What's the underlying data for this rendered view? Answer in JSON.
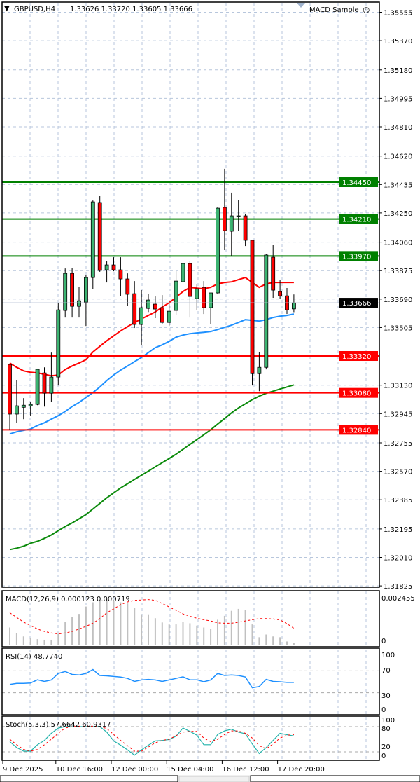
{
  "header": {
    "menu_glyph": "▼",
    "symbol": "GBPUSD,H4",
    "ohlc": "1.33626 1.33720 1.33605 1.33666",
    "expert": "MACD Sample",
    "expert_icon": "sad-face-icon",
    "expert_glyph": "☹"
  },
  "colors": {
    "bull": "#3cb371",
    "bear": "#ff0000",
    "ma_fast": "#ff0000",
    "ma_mid": "#1e90ff",
    "ma_slow": "#0a8a0a",
    "resistance": "#008000",
    "support": "#ff0000",
    "grid": "#b7c6dc",
    "macd_hist": "#c0c0c0",
    "macd_signal": "#ff0000",
    "rsi": "#1e90ff",
    "stoch_main": "#20b2aa",
    "stoch_signal": "#ff0000"
  },
  "chart_data": [
    {
      "type": "candlestick",
      "title": "GBPUSD,H4",
      "ylim": [
        1.31825,
        1.35555
      ],
      "grid": true,
      "y_ticks": [
        "1.35555",
        "1.35370",
        "1.35180",
        "1.34995",
        "1.34810",
        "1.34620",
        "1.34435",
        "1.34250",
        "1.34060",
        "1.33875",
        "1.33690",
        "1.33505",
        "1.33130",
        "1.32945",
        "1.32755",
        "1.32570",
        "1.32385",
        "1.32195",
        "1.32010",
        "1.31825"
      ],
      "x_ticks": [
        "9 Dec 2025",
        "10 Dec 16:00",
        "12 Dec 00:00",
        "15 Dec 04:00",
        "16 Dec 12:00",
        "17 Dec 20:00"
      ],
      "x_tick_candle_index": [
        -1,
        7,
        15,
        23,
        31,
        39
      ],
      "current_price": "1.33666",
      "levels": [
        {
          "price": "1.34450",
          "kind": "resistance"
        },
        {
          "price": "1.34210",
          "kind": "resistance"
        },
        {
          "price": "1.33970",
          "kind": "resistance"
        },
        {
          "price": "1.33320",
          "kind": "support"
        },
        {
          "price": "1.33080",
          "kind": "support"
        },
        {
          "price": "1.32840",
          "kind": "support"
        }
      ],
      "ohlc": [
        [
          1.33265,
          1.33265,
          1.32842,
          1.32942
        ],
        [
          1.32942,
          1.33165,
          1.32886,
          1.32996
        ],
        [
          1.32986,
          1.33046,
          1.32909,
          1.33
        ],
        [
          1.32996,
          1.33023,
          1.32932,
          1.33005
        ],
        [
          1.33005,
          1.33237,
          1.33,
          1.33233
        ],
        [
          1.3321,
          1.33246,
          1.32991,
          1.33078
        ],
        [
          1.33078,
          1.33342,
          1.33023,
          1.33183
        ],
        [
          1.33183,
          1.33666,
          1.33128,
          1.3362
        ],
        [
          1.33616,
          1.33889,
          1.3357,
          1.33857
        ],
        [
          1.33857,
          1.33894,
          1.3357,
          1.33643
        ],
        [
          1.33643,
          1.33771,
          1.3357,
          1.33679
        ],
        [
          1.3367,
          1.33848,
          1.33515,
          1.3383
        ],
        [
          1.3383,
          1.34331,
          1.33757,
          1.34322
        ],
        [
          1.34318,
          1.34359,
          1.33867,
          1.33876
        ],
        [
          1.3388,
          1.33935,
          1.33798,
          1.33912
        ],
        [
          1.33912,
          1.33962,
          1.33871,
          1.3388
        ],
        [
          1.3388,
          1.33962,
          1.33711,
          1.33821
        ],
        [
          1.33821,
          1.33857,
          1.33648,
          1.33721
        ],
        [
          1.33725,
          1.33807,
          1.33502,
          1.33525
        ],
        [
          1.33525,
          1.33748,
          1.33392,
          1.33634
        ],
        [
          1.33629,
          1.33725,
          1.33606,
          1.33684
        ],
        [
          1.33657,
          1.33707,
          1.33566,
          1.33625
        ],
        [
          1.33634,
          1.33716,
          1.33525,
          1.33538
        ],
        [
          1.33538,
          1.33675,
          1.33515,
          1.33611
        ],
        [
          1.33616,
          1.33871,
          1.33584,
          1.33807
        ],
        [
          1.33803,
          1.3399,
          1.3378,
          1.33921
        ],
        [
          1.33921,
          1.33935,
          1.3357,
          1.33707
        ],
        [
          1.33693,
          1.33784,
          1.33616,
          1.33757
        ],
        [
          1.33766,
          1.33807,
          1.33593,
          1.33634
        ],
        [
          1.33634,
          1.3373,
          1.33525,
          1.3373
        ],
        [
          1.3373,
          1.3429,
          1.33725,
          1.34281
        ],
        [
          1.34286,
          1.34537,
          1.34008,
          1.34135
        ],
        [
          1.34131,
          1.34382,
          1.33971,
          1.34231
        ],
        [
          1.34227,
          1.34336,
          1.34131,
          1.34231
        ],
        [
          1.34231,
          1.34245,
          1.34035,
          1.34072
        ],
        [
          1.34072,
          1.34072,
          1.33128,
          1.33205
        ],
        [
          1.33205,
          1.33347,
          1.33091,
          1.33246
        ],
        [
          1.33246,
          1.33981,
          1.33233,
          1.33976
        ],
        [
          1.33962,
          1.3404,
          1.33698,
          1.33748
        ],
        [
          1.33739,
          1.33816,
          1.33689,
          1.33711
        ],
        [
          1.33711,
          1.33762,
          1.33593,
          1.3362
        ],
        [
          1.33626,
          1.3372,
          1.33605,
          1.33666
        ]
      ],
      "ma_fast": [
        1.33274,
        1.33246,
        1.33223,
        1.33214,
        1.3321,
        1.33201,
        1.33191,
        1.33196,
        1.33232,
        1.33255,
        1.33274,
        1.33296,
        1.33346,
        1.33383,
        1.33419,
        1.33451,
        1.33483,
        1.33511,
        1.33538,
        1.33561,
        1.33584,
        1.33606,
        1.33638,
        1.33666,
        1.33702,
        1.33739,
        1.33766,
        1.33761,
        1.33757,
        1.33766,
        1.33789,
        1.33798,
        1.33802,
        1.33816,
        1.3383,
        1.33798,
        1.33766,
        1.33789,
        1.33798,
        1.33798,
        1.33798,
        1.33798
      ],
      "ma_mid": [
        1.32813,
        1.32827,
        1.32836,
        1.32845,
        1.32868,
        1.32886,
        1.32909,
        1.32932,
        1.32959,
        1.32991,
        1.33018,
        1.3305,
        1.33082,
        1.33118,
        1.3316,
        1.33196,
        1.33228,
        1.33255,
        1.33283,
        1.3331,
        1.33342,
        1.33374,
        1.33392,
        1.33415,
        1.33442,
        1.33456,
        1.33465,
        1.3347,
        1.33474,
        1.33479,
        1.33492,
        1.33506,
        1.3352,
        1.33538,
        1.33556,
        1.33552,
        1.33547,
        1.33556,
        1.3357,
        1.33579,
        1.33584,
        1.33593
      ],
      "ma_slow": [
        1.32061,
        1.3207,
        1.32083,
        1.32102,
        1.32115,
        1.32134,
        1.32156,
        1.32184,
        1.32211,
        1.32234,
        1.32261,
        1.32289,
        1.32325,
        1.32362,
        1.32398,
        1.3243,
        1.32462,
        1.32489,
        1.32517,
        1.32544,
        1.32571,
        1.32599,
        1.32626,
        1.32653,
        1.32681,
        1.32713,
        1.32745,
        1.32776,
        1.32808,
        1.3284,
        1.32877,
        1.32913,
        1.3295,
        1.32982,
        1.33009,
        1.33036,
        1.33059,
        1.33077,
        1.33091,
        1.33105,
        1.33118,
        1.33132
      ]
    },
    {
      "type": "bar",
      "title": "MACD(12,26,9) 0.000123 0.000719",
      "ylim": [
        0,
        0.002455
      ],
      "y_ticks": [
        "0.002455",
        "0"
      ],
      "histogram": [
        0.00092,
        0.00064,
        0.00046,
        0.0004,
        0.00032,
        0.00029,
        0.00029,
        0.0006,
        0.00122,
        0.00145,
        0.00162,
        0.002,
        0.00222,
        0.00232,
        0.00236,
        0.00228,
        0.00222,
        0.00216,
        0.00192,
        0.0016,
        0.0016,
        0.0014,
        0.00118,
        0.00108,
        0.00108,
        0.00122,
        0.00114,
        0.00102,
        0.00092,
        0.00086,
        0.00132,
        0.00152,
        0.00178,
        0.00188,
        0.00184,
        0.00108,
        0.00042,
        0.00056,
        0.00046,
        0.00042,
        0.0002,
        0.00012
      ],
      "signal": [
        0.00168,
        0.00144,
        0.0012,
        0.00102,
        0.00084,
        0.00072,
        0.00064,
        0.00059,
        0.00064,
        0.00072,
        0.00084,
        0.00098,
        0.00114,
        0.00138,
        0.00168,
        0.00188,
        0.0021,
        0.00224,
        0.00232,
        0.00234,
        0.00236,
        0.00232,
        0.00216,
        0.00198,
        0.0018,
        0.00162,
        0.0015,
        0.0014,
        0.00132,
        0.00126,
        0.00116,
        0.00114,
        0.00114,
        0.00119,
        0.00126,
        0.00132,
        0.00138,
        0.00138,
        0.00136,
        0.00131,
        0.00112,
        0.00088
      ]
    },
    {
      "type": "line",
      "title": "RSI(14) 48.7740",
      "ylim": [
        0,
        100
      ],
      "y_ticks": [
        "100",
        "70",
        "30",
        "0"
      ],
      "levels": [
        70,
        30
      ],
      "values": [
        45.3,
        47.1,
        47.1,
        47.8,
        53.6,
        50.7,
        53.3,
        65.3,
        68.9,
        63.5,
        62.4,
        65.3,
        72.5,
        61.6,
        60.9,
        59.8,
        58.7,
        56.2,
        50.7,
        53.3,
        54.4,
        53.3,
        50.7,
        53.3,
        56.2,
        59.1,
        53.6,
        53.6,
        50.0,
        53.3,
        65.3,
        61.6,
        62.4,
        61.6,
        58.7,
        39.1,
        41.3,
        54.4,
        50.7,
        50.0,
        48.9,
        48.8
      ]
    },
    {
      "type": "line",
      "title": "Stoch(5,3,3) 57.6642 60.9317",
      "ylim": [
        0,
        100
      ],
      "y_ticks": [
        "100",
        "80",
        "20",
        "0"
      ],
      "levels": [
        80,
        20
      ],
      "main": [
        44.3,
        30.2,
        21.7,
        21.7,
        37.0,
        47.2,
        64.2,
        76.6,
        80,
        80,
        80,
        80,
        80,
        80,
        67.0,
        46.0,
        35.9,
        24.5,
        12.1,
        24.5,
        35.9,
        46.0,
        47.2,
        49.4,
        57.4,
        76.6,
        68.7,
        59.6,
        37.0,
        37.0,
        61.3,
        69.8,
        73.8,
        67.0,
        63.0,
        38.7,
        16.0,
        30.2,
        47.2,
        64.2,
        60.8,
        57.7
      ],
      "signal": [
        50.0,
        37.0,
        25.7,
        21.7,
        25.7,
        37.0,
        50.0,
        64.2,
        76.6,
        80,
        81,
        81,
        81,
        80,
        75.5,
        61.3,
        47.2,
        34.7,
        21.7,
        21.7,
        31.3,
        41.5,
        47.2,
        50.0,
        58.5,
        67.0,
        68.7,
        68.7,
        52.8,
        44.3,
        50.0,
        61.3,
        69.8,
        69.8,
        64.2,
        52.8,
        34.7,
        27.4,
        38.7,
        52.8,
        59.6,
        60.9
      ]
    }
  ]
}
